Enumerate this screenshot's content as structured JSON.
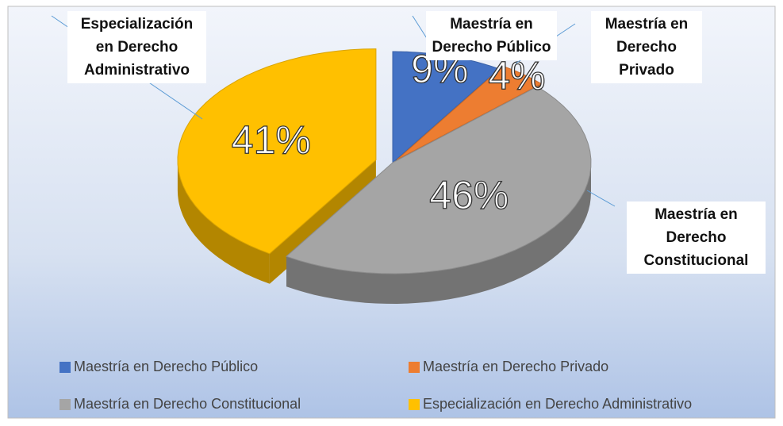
{
  "chart_data": {
    "type": "pie3d",
    "categories": [
      "Maestría en Derecho Público",
      "Maestría en Derecho Privado",
      "Maestría en Derecho Constitucional",
      "Especialización en Derecho Administrativo"
    ],
    "values": [
      9,
      4,
      46,
      41
    ],
    "value_labels": [
      "9%",
      "4%",
      "46%",
      "41%"
    ],
    "colors": [
      "#4472c4",
      "#ed7d31",
      "#a5a5a5",
      "#ffc000"
    ],
    "legend": "bottom"
  }
}
